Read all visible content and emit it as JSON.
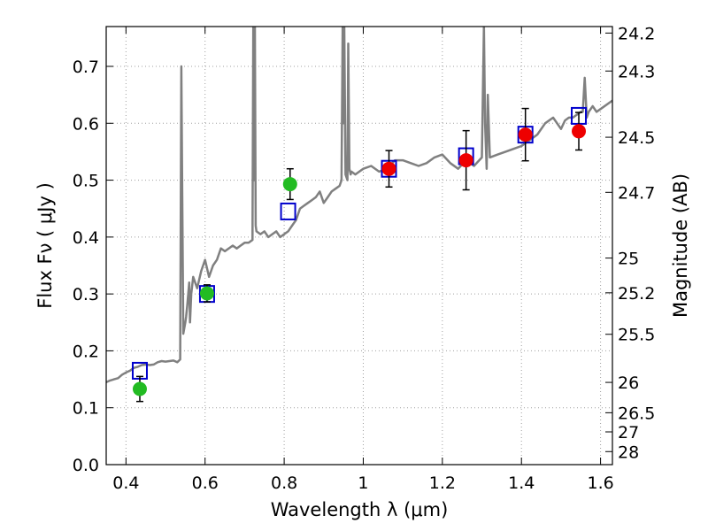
{
  "chart_data": {
    "type": "line",
    "title": "",
    "xlabel": "Wavelength  λ (μm)",
    "ylabel": "Flux  Fν  ( μJy )",
    "ylabel_right": "Magnitude (AB)",
    "xlim": [
      0.35,
      1.63
    ],
    "ylim": [
      0.0,
      0.77
    ],
    "grid": true,
    "x_ticks": [
      0.4,
      0.6,
      0.8,
      1.0,
      1.2,
      1.4,
      1.6
    ],
    "x_tick_labels": [
      "0.4",
      "0.6",
      "0.8",
      "1",
      "1.2",
      "1.4",
      "1.6"
    ],
    "y_ticks": [
      0.0,
      0.1,
      0.2,
      0.3,
      0.4,
      0.5,
      0.6,
      0.7
    ],
    "y_tick_labels": [
      "0.0",
      "0.1",
      "0.2",
      "0.3",
      "0.4",
      "0.5",
      "0.6",
      "0.7"
    ],
    "mag_ticks": [
      24.2,
      24.3,
      24.5,
      24.7,
      25,
      25.2,
      25.5,
      26,
      26.5,
      27,
      28
    ],
    "mag_tick_labels": [
      "24.2",
      "24.3",
      "24.5",
      "24.7",
      "25",
      "25.2",
      "25.5",
      "26",
      "26.5",
      "27",
      "28"
    ],
    "mag_zero_point": 23.9,
    "colors": {
      "template": "#808080",
      "model_marker": "#0000cc",
      "ground_obs": "#22bb22",
      "ir_obs": "#ee0000",
      "errorbar": "#000000",
      "grid": "#a0a0a0"
    },
    "series": [
      {
        "name": "template spectrum",
        "kind": "line",
        "x": [
          0.35,
          0.36,
          0.37,
          0.38,
          0.39,
          0.4,
          0.41,
          0.42,
          0.43,
          0.44,
          0.45,
          0.46,
          0.47,
          0.48,
          0.49,
          0.5,
          0.51,
          0.52,
          0.53,
          0.537,
          0.54,
          0.542,
          0.545,
          0.55,
          0.552,
          0.555,
          0.56,
          0.562,
          0.565,
          0.57,
          0.58,
          0.59,
          0.6,
          0.61,
          0.62,
          0.63,
          0.64,
          0.65,
          0.66,
          0.67,
          0.68,
          0.69,
          0.7,
          0.71,
          0.72,
          0.722,
          0.724,
          0.726,
          0.728,
          0.73,
          0.74,
          0.75,
          0.76,
          0.77,
          0.78,
          0.79,
          0.8,
          0.81,
          0.82,
          0.83,
          0.84,
          0.85,
          0.86,
          0.87,
          0.88,
          0.89,
          0.9,
          0.91,
          0.92,
          0.93,
          0.94,
          0.945,
          0.948,
          0.95,
          0.952,
          0.955,
          0.96,
          0.962,
          0.965,
          0.968,
          0.97,
          0.98,
          0.99,
          1.0,
          1.02,
          1.04,
          1.06,
          1.08,
          1.1,
          1.12,
          1.14,
          1.16,
          1.18,
          1.2,
          1.22,
          1.24,
          1.26,
          1.28,
          1.3,
          1.305,
          1.308,
          1.312,
          1.315,
          1.32,
          1.34,
          1.36,
          1.38,
          1.4,
          1.42,
          1.44,
          1.46,
          1.48,
          1.5,
          1.51,
          1.52,
          1.53,
          1.54,
          1.55,
          1.555,
          1.56,
          1.565,
          1.57,
          1.58,
          1.59,
          1.6,
          1.63
        ],
        "values": [
          0.145,
          0.148,
          0.15,
          0.152,
          0.158,
          0.162,
          0.165,
          0.17,
          0.172,
          0.175,
          0.176,
          0.175,
          0.176,
          0.18,
          0.182,
          0.181,
          0.182,
          0.183,
          0.18,
          0.185,
          0.7,
          0.5,
          0.23,
          0.25,
          0.26,
          0.28,
          0.32,
          0.25,
          0.3,
          0.33,
          0.31,
          0.34,
          0.36,
          0.33,
          0.35,
          0.36,
          0.38,
          0.375,
          0.38,
          0.385,
          0.38,
          0.385,
          0.39,
          0.39,
          0.395,
          0.77,
          0.5,
          0.77,
          0.42,
          0.41,
          0.405,
          0.41,
          0.4,
          0.405,
          0.41,
          0.4,
          0.405,
          0.41,
          0.42,
          0.43,
          0.45,
          0.455,
          0.46,
          0.465,
          0.47,
          0.48,
          0.46,
          0.47,
          0.48,
          0.485,
          0.49,
          0.5,
          0.77,
          0.6,
          0.77,
          0.51,
          0.5,
          0.74,
          0.52,
          0.51,
          0.515,
          0.51,
          0.515,
          0.52,
          0.525,
          0.515,
          0.52,
          0.535,
          0.535,
          0.53,
          0.525,
          0.53,
          0.54,
          0.545,
          0.53,
          0.52,
          0.535,
          0.525,
          0.54,
          0.77,
          0.6,
          0.52,
          0.65,
          0.54,
          0.545,
          0.55,
          0.555,
          0.56,
          0.57,
          0.58,
          0.6,
          0.61,
          0.59,
          0.605,
          0.61,
          0.61,
          0.615,
          0.62,
          0.62,
          0.68,
          0.61,
          0.62,
          0.63,
          0.62,
          0.625,
          0.64
        ]
      },
      {
        "name": "model photometry",
        "kind": "open-square",
        "x": [
          0.435,
          0.605,
          0.81,
          1.065,
          1.26,
          1.41,
          1.545
        ],
        "values": [
          0.165,
          0.3,
          0.445,
          0.52,
          0.542,
          0.58,
          0.613
        ]
      },
      {
        "name": "optical observations",
        "kind": "filled-circle",
        "x": [
          0.435,
          0.605,
          0.815
        ],
        "values": [
          0.133,
          0.301,
          0.493
        ],
        "errors": [
          0.022,
          0.015,
          0.027
        ]
      },
      {
        "name": "near-IR observations",
        "kind": "filled-circle",
        "x": [
          1.065,
          1.26,
          1.41,
          1.545
        ],
        "values": [
          0.52,
          0.535,
          0.58,
          0.586
        ],
        "errors": [
          0.032,
          0.052,
          0.046,
          0.033
        ]
      }
    ]
  }
}
